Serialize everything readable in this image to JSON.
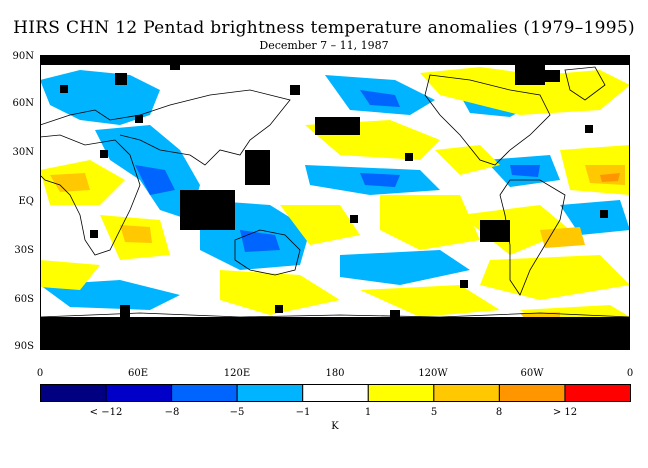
{
  "title": "HIRS CHN 12 Pentad brightness temperature anomalies (1979–1995)",
  "subtitle": "December 7 – 11, 1987",
  "lat_labels": [
    "90N",
    "60N",
    "30N",
    "EQ",
    "30S",
    "60S",
    "90S"
  ],
  "lon_labels": [
    "0",
    "60E",
    "120E",
    "180",
    "120W",
    "60W",
    "0"
  ],
  "colorbar": {
    "colors": [
      "#000080",
      "#0000c8",
      "#0064ff",
      "#00b4ff",
      "#ffffff",
      "#ffff00",
      "#ffc800",
      "#ff9600",
      "#ff0000"
    ],
    "labels": [
      "< −12",
      "−8",
      "−5",
      "−1",
      "1",
      "5",
      "8",
      "> 12"
    ],
    "unit": "K"
  },
  "map_colors": {
    "missing": "#000000",
    "coast": "#000000"
  }
}
